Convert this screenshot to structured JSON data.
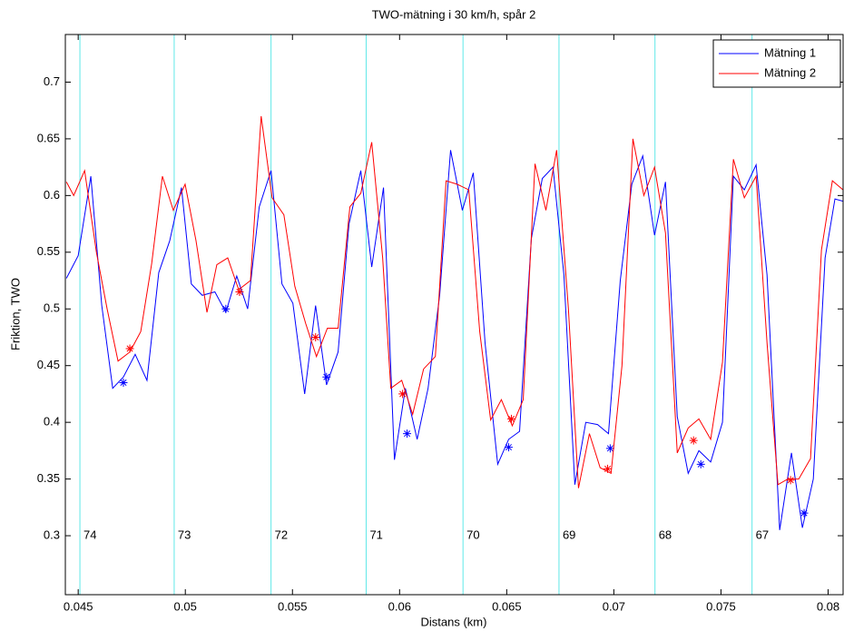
{
  "chart_data": {
    "type": "line",
    "title": "TWO-mätning i 30 km/h, spår 2",
    "x_label": "Distans (km)",
    "y_label": "Friktion, TWO",
    "xlim": [
      0.0444,
      0.0807
    ],
    "ylim": [
      0.248,
      0.742
    ],
    "xticks": [
      0.045,
      0.05,
      0.055,
      0.06,
      0.065,
      0.07,
      0.075,
      0.08
    ],
    "yticks": [
      0.3,
      0.35,
      0.4,
      0.45,
      0.5,
      0.55,
      0.6,
      0.65,
      0.7
    ],
    "legend": "upper right",
    "section_color": "#5fe8e8",
    "section_label_y": 0.3,
    "sections": [
      {
        "x": 0.04508,
        "label": "74"
      },
      {
        "x": 0.04948,
        "label": "73"
      },
      {
        "x": 0.054,
        "label": "72"
      },
      {
        "x": 0.05844,
        "label": "71"
      },
      {
        "x": 0.06296,
        "label": "70"
      },
      {
        "x": 0.06744,
        "label": "69"
      },
      {
        "x": 0.07192,
        "label": "68"
      },
      {
        "x": 0.07645,
        "label": "67"
      }
    ],
    "series": [
      {
        "name": "Mätning 1",
        "color": "#0000ff",
        "x": [
          0.04445,
          0.045,
          0.04559,
          0.0461,
          0.04661,
          0.04711,
          0.04766,
          0.04821,
          0.04876,
          0.04927,
          0.04982,
          0.05028,
          0.05079,
          0.05138,
          0.05189,
          0.0524,
          0.05291,
          0.05345,
          0.054,
          0.05451,
          0.05502,
          0.05557,
          0.05608,
          0.05659,
          0.05713,
          0.05764,
          0.05819,
          0.0587,
          0.05925,
          0.05976,
          0.06027,
          0.06082,
          0.06133,
          0.06187,
          0.06238,
          0.06293,
          0.06344,
          0.06399,
          0.06458,
          0.06509,
          0.0656,
          0.06615,
          0.06666,
          0.06716,
          0.06767,
          0.06818,
          0.06869,
          0.06924,
          0.06975,
          0.0703,
          0.07084,
          0.07135,
          0.0719,
          0.07241,
          0.07296,
          0.07347,
          0.07397,
          0.07452,
          0.07507,
          0.07558,
          0.07609,
          0.07664,
          0.07715,
          0.07774,
          0.07829,
          0.0788,
          0.07931,
          0.07986,
          0.08032,
          0.0807
        ],
        "values": [
          0.527,
          0.547,
          0.617,
          0.503,
          0.43,
          0.44,
          0.46,
          0.437,
          0.532,
          0.56,
          0.607,
          0.522,
          0.512,
          0.515,
          0.497,
          0.529,
          0.5,
          0.59,
          0.622,
          0.522,
          0.505,
          0.425,
          0.503,
          0.433,
          0.462,
          0.575,
          0.622,
          0.537,
          0.607,
          0.367,
          0.43,
          0.385,
          0.43,
          0.512,
          0.64,
          0.587,
          0.62,
          0.47,
          0.363,
          0.385,
          0.392,
          0.562,
          0.615,
          0.625,
          0.53,
          0.345,
          0.4,
          0.398,
          0.39,
          0.525,
          0.61,
          0.635,
          0.565,
          0.612,
          0.405,
          0.355,
          0.375,
          0.365,
          0.4,
          0.617,
          0.605,
          0.627,
          0.53,
          0.305,
          0.373,
          0.307,
          0.35,
          0.545,
          0.597,
          0.595
        ],
        "marker_x": [
          0.04711,
          0.05189,
          0.05659,
          0.06035,
          0.06509,
          0.06983,
          0.07406,
          0.07888
        ],
        "marker_values": [
          0.435,
          0.5,
          0.44,
          0.39,
          0.378,
          0.377,
          0.363,
          0.32
        ]
      },
      {
        "name": "Mätning 2",
        "color": "#ff0000",
        "x": [
          0.04445,
          0.04479,
          0.0453,
          0.04585,
          0.04635,
          0.04686,
          0.04741,
          0.04792,
          0.04843,
          0.04893,
          0.04944,
          0.04999,
          0.0505,
          0.05101,
          0.05147,
          0.05198,
          0.05249,
          0.05304,
          0.05354,
          0.05405,
          0.0546,
          0.05511,
          0.05562,
          0.05612,
          0.05663,
          0.05713,
          0.05768,
          0.05819,
          0.0587,
          0.05921,
          0.05959,
          0.0601,
          0.06061,
          0.06112,
          0.06167,
          0.06217,
          0.06268,
          0.06323,
          0.06374,
          0.06425,
          0.06475,
          0.06526,
          0.06577,
          0.06632,
          0.06683,
          0.06733,
          0.06788,
          0.06835,
          0.06886,
          0.06936,
          0.06987,
          0.07038,
          0.07089,
          0.0714,
          0.0719,
          0.07241,
          0.07296,
          0.07347,
          0.07397,
          0.07452,
          0.07507,
          0.07558,
          0.07609,
          0.07664,
          0.07715,
          0.07766,
          0.07812,
          0.07863,
          0.07918,
          0.07969,
          0.0802,
          0.0807
        ],
        "values": [
          0.612,
          0.6,
          0.622,
          0.55,
          0.5,
          0.454,
          0.462,
          0.48,
          0.54,
          0.617,
          0.587,
          0.61,
          0.56,
          0.497,
          0.539,
          0.545,
          0.517,
          0.525,
          0.67,
          0.598,
          0.583,
          0.52,
          0.487,
          0.458,
          0.483,
          0.483,
          0.59,
          0.602,
          0.647,
          0.545,
          0.43,
          0.437,
          0.407,
          0.447,
          0.458,
          0.613,
          0.61,
          0.605,
          0.48,
          0.402,
          0.42,
          0.397,
          0.42,
          0.628,
          0.587,
          0.64,
          0.5,
          0.342,
          0.39,
          0.36,
          0.355,
          0.45,
          0.65,
          0.6,
          0.625,
          0.567,
          0.373,
          0.395,
          0.403,
          0.385,
          0.453,
          0.632,
          0.598,
          0.617,
          0.47,
          0.345,
          0.35,
          0.35,
          0.368,
          0.552,
          0.613,
          0.605
        ],
        "marker_x": [
          0.04741,
          0.05253,
          0.05608,
          0.06014,
          0.06522,
          0.06971,
          0.07372,
          0.07825
        ],
        "marker_values": [
          0.465,
          0.515,
          0.475,
          0.425,
          0.403,
          0.359,
          0.384,
          0.349
        ]
      }
    ]
  }
}
